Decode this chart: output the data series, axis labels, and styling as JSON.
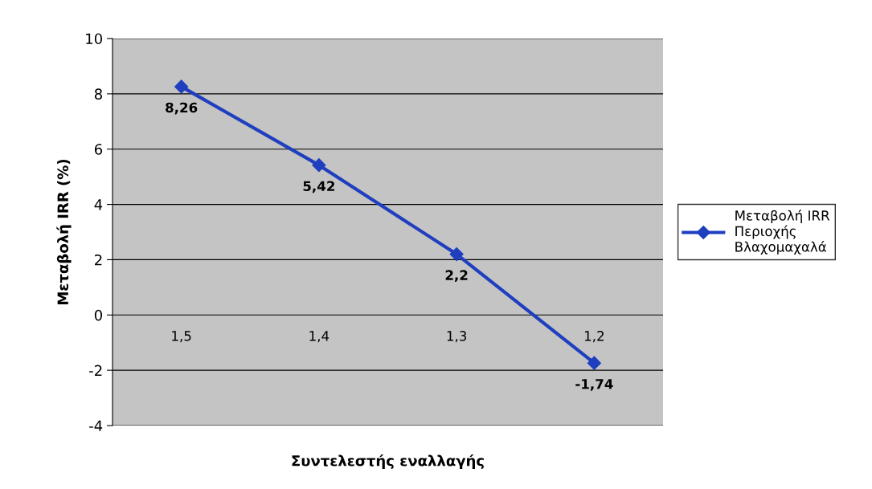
{
  "chart_data": {
    "type": "line",
    "xlabel": "Συντελεστής εναλλαγής",
    "ylabel": "Μεταβολή IRR (%)",
    "categories": [
      "1,5",
      "1,4",
      "1,3",
      "1,2"
    ],
    "series": [
      {
        "name": "Μεταβολή IRR\nΠεριοχής\nΒλαχομαχαλά",
        "color": "#1f3fbf",
        "values": [
          8.26,
          5.42,
          2.2,
          -1.74
        ],
        "value_labels": [
          "8,26",
          "5,42",
          "2,2",
          "-1,74"
        ]
      }
    ],
    "ylim": [
      -4,
      10
    ],
    "yticks": [
      -4,
      -2,
      0,
      2,
      4,
      6,
      8,
      10
    ],
    "grid": "y",
    "legend": "right",
    "marker": "diamond",
    "line_style": "solid"
  }
}
